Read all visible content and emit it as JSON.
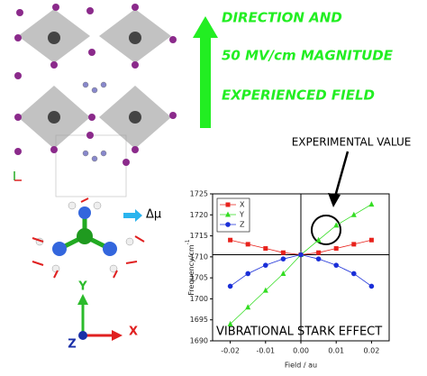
{
  "headline": [
    "DIRECTION AND",
    "50 MV/cm MAGNITUDE",
    "EXPERIENCED FIELD"
  ],
  "dipole_label": "Δμ",
  "frame_axes": {
    "x": "X",
    "y": "Y",
    "z": "Z"
  },
  "experimental_label": "EXPERIMENTAL VALUE",
  "chart_data": {
    "type": "line",
    "annotation": "VIBRATIONAL STARK EFFECT",
    "x_label": "Field / au",
    "y_label": "Frequency/cm",
    "y_label_exponent": "-1",
    "x": [
      -0.02,
      -0.015,
      -0.01,
      -0.005,
      0,
      0.005,
      0.01,
      0.015,
      0.02
    ],
    "series": [
      {
        "name": "X",
        "color": "#e8221c",
        "marker": "square",
        "values": [
          1714,
          1713,
          1712,
          1711,
          1710.5,
          1711,
          1712,
          1713,
          1714
        ]
      },
      {
        "name": "Y",
        "color": "#33dd22",
        "marker": "triangle",
        "values": [
          1694,
          1698,
          1702,
          1706,
          1710.5,
          1714,
          1717.5,
          1720,
          1722.5
        ]
      },
      {
        "name": "Z",
        "color": "#1a2fd8",
        "marker": "circle",
        "values": [
          1703,
          1706,
          1708,
          1709.5,
          1710.5,
          1709.5,
          1708,
          1706,
          1703
        ]
      }
    ],
    "xlim": [
      -0.025,
      0.025
    ],
    "ylim": [
      1690,
      1725
    ],
    "xticks": [
      -0.02,
      -0.01,
      {
        "value": 0,
        "label": "0.00"
      },
      0.01,
      0.02
    ],
    "yticks": [
      1690,
      1695,
      1700,
      1705,
      1710,
      1715,
      1720,
      1725
    ],
    "reference_lines": {
      "x": 0,
      "y": 1710.5
    },
    "legend": "top-left"
  }
}
